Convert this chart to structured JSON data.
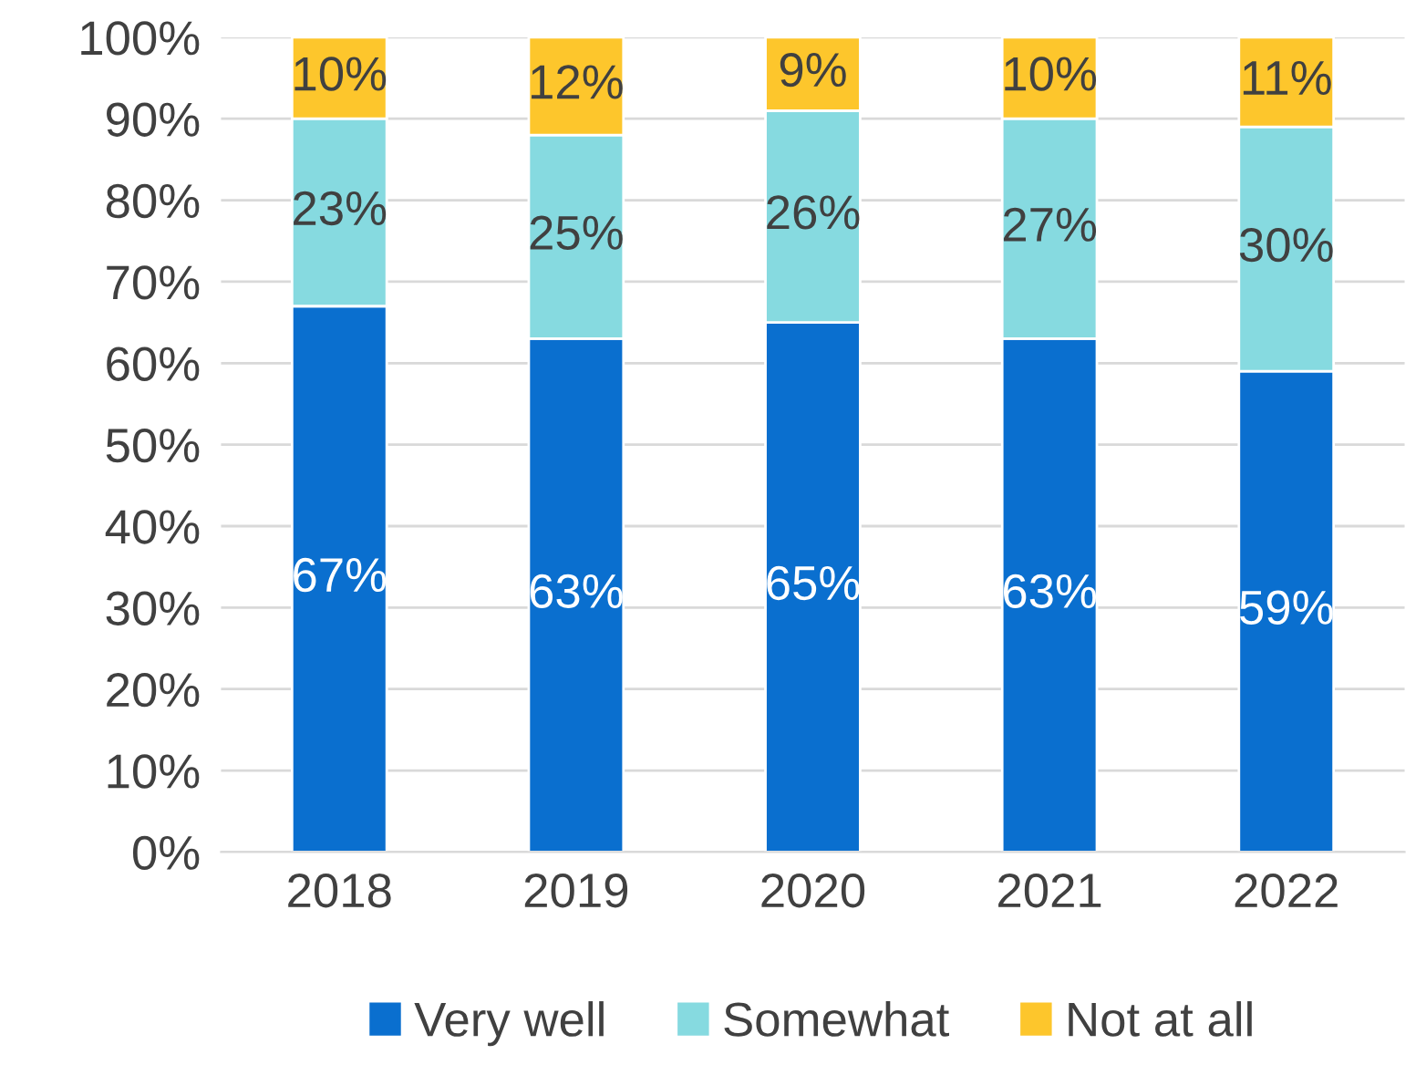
{
  "chart_data": {
    "type": "bar",
    "stacked": true,
    "categories": [
      "2018",
      "2019",
      "2020",
      "2021",
      "2022"
    ],
    "series": [
      {
        "name": "Very well",
        "color": "#0a6fcf",
        "values": [
          67,
          63,
          65,
          63,
          59
        ],
        "value_labels": [
          "67%",
          "63%",
          "65%",
          "63%",
          "59%"
        ]
      },
      {
        "name": "Somewhat",
        "color": "#86dae0",
        "values": [
          23,
          25,
          26,
          27,
          30
        ],
        "value_labels": [
          "23%",
          "25%",
          "26%",
          "27%",
          "30%"
        ]
      },
      {
        "name": "Not at all",
        "color": "#fdc62c",
        "values": [
          10,
          12,
          9,
          10,
          11
        ],
        "value_labels": [
          "10%",
          "12%",
          "9%",
          "10%",
          "11%"
        ]
      }
    ],
    "ylim": [
      0,
      100
    ],
    "yticks": [
      {
        "value": 0,
        "label": "0%"
      },
      {
        "value": 10,
        "label": "10%"
      },
      {
        "value": 20,
        "label": "20%"
      },
      {
        "value": 30,
        "label": "30%"
      },
      {
        "value": 40,
        "label": "40%"
      },
      {
        "value": 50,
        "label": "50%"
      },
      {
        "value": 60,
        "label": "60%"
      },
      {
        "value": 70,
        "label": "70%"
      },
      {
        "value": 80,
        "label": "80%"
      },
      {
        "value": 90,
        "label": "90%"
      },
      {
        "value": 100,
        "label": "100%"
      }
    ],
    "grid": "y",
    "legend": "bottom"
  }
}
